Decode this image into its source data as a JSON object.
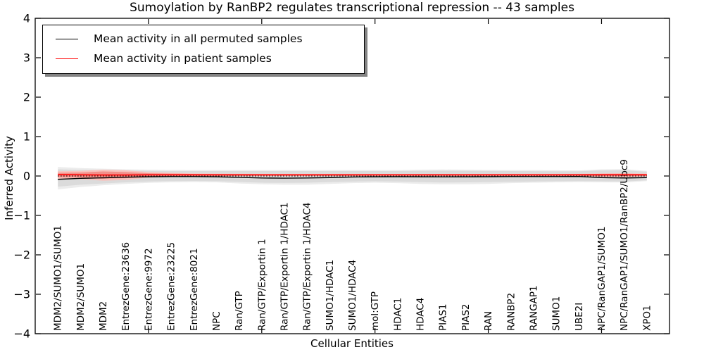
{
  "figure": {
    "title": "Sumoylation by RanBP2 regulates transcriptional repression -- 43 samples",
    "xlabel": "Cellular Entities",
    "ylabel": "Inferred Activity"
  },
  "legend": {
    "position": "upper left",
    "shadow": true,
    "entries": [
      {
        "label": "Mean activity in all permuted samples",
        "color": "#000000"
      },
      {
        "label": "Mean activity in patient samples",
        "color": "#ff0000"
      }
    ]
  },
  "chart_data": {
    "type": "line",
    "title": "Sumoylation by RanBP2 regulates transcriptional repression -- 43 samples",
    "xlabel": "Cellular Entities",
    "ylabel": "Inferred Activity",
    "ylim": [
      -4,
      4
    ],
    "xlim": [
      0,
      28
    ],
    "grid": false,
    "legend_position": "upper left",
    "yticks": [
      4,
      3,
      2,
      1,
      0,
      -1,
      -2,
      -3,
      -4
    ],
    "ytick_labels": [
      "4",
      "3",
      "2",
      "1",
      "0",
      "−1",
      "−2",
      "−3",
      "−4"
    ],
    "xticks": [
      5,
      10,
      15,
      20,
      25
    ],
    "categories": [
      "MDM2/SUMO1/SUMO1",
      "MDM2/SUMO1",
      "MDM2",
      "EntrezGene:23636",
      "EntrezGene:9972",
      "EntrezGene:23225",
      "EntrezGene:8021",
      "NPC",
      "Ran/GTP",
      "Ran/GTP/Exportin 1",
      "Ran/GTP/Exportin 1/HDAC1",
      "Ran/GTP/Exportin 1/HDAC4",
      "SUMO1/HDAC1",
      "SUMO1/HDAC4",
      "mol:GTP",
      "HDAC1",
      "HDAC4",
      "PIAS1",
      "PIAS2",
      "RAN",
      "RANBP2",
      "RANGAP1",
      "SUMO1",
      "UBE2I",
      "NPC/RanGAP1/SUMO1",
      "NPC/RanGAP1/SUMO1/RanBP2/Ubc9",
      "XPO1"
    ],
    "series": [
      {
        "name": "Mean activity in all permuted samples",
        "color": "#000000",
        "style": "solid",
        "width": 1.4,
        "values": [
          -0.085,
          -0.06,
          -0.045,
          -0.03,
          -0.02,
          -0.015,
          -0.015,
          -0.02,
          -0.035,
          -0.05,
          -0.055,
          -0.05,
          -0.04,
          -0.025,
          -0.02,
          -0.018,
          -0.02,
          -0.022,
          -0.02,
          -0.018,
          -0.015,
          -0.015,
          -0.015,
          -0.012,
          -0.04,
          -0.05,
          -0.04
        ]
      },
      {
        "name": "Mean activity in patient samples",
        "color": "#ff0000",
        "style": "solid",
        "width": 1.6,
        "values": [
          0.035,
          0.03,
          0.025,
          0.025,
          0.03,
          0.03,
          0.03,
          0.03,
          0.03,
          0.03,
          0.03,
          0.03,
          0.03,
          0.03,
          0.03,
          0.03,
          0.03,
          0.03,
          0.03,
          0.03,
          0.03,
          0.03,
          0.03,
          0.03,
          0.03,
          0.03,
          0.03
        ]
      }
    ],
    "zero_line": {
      "value": 0,
      "color": "#000000",
      "style": "dotted"
    },
    "bands": [
      {
        "name": "permuted-outer",
        "color": "#ececec",
        "upper": [
          0.23,
          0.2,
          0.185,
          0.17,
          0.16,
          0.155,
          0.15,
          0.15,
          0.15,
          0.15,
          0.15,
          0.15,
          0.15,
          0.15,
          0.15,
          0.15,
          0.16,
          0.165,
          0.16,
          0.155,
          0.15,
          0.15,
          0.145,
          0.14,
          0.17,
          0.175,
          0.13
        ],
        "lower": [
          -0.34,
          -0.28,
          -0.235,
          -0.2,
          -0.175,
          -0.16,
          -0.155,
          -0.16,
          -0.19,
          -0.21,
          -0.22,
          -0.22,
          -0.2,
          -0.18,
          -0.17,
          -0.18,
          -0.2,
          -0.21,
          -0.21,
          -0.2,
          -0.18,
          -0.17,
          -0.16,
          -0.155,
          -0.16,
          -0.165,
          -0.13
        ]
      },
      {
        "name": "permuted-inner",
        "color": "#dbdbdb",
        "upper": [
          0.17,
          0.155,
          0.15,
          0.14,
          0.13,
          0.125,
          0.125,
          0.125,
          0.125,
          0.125,
          0.125,
          0.125,
          0.125,
          0.125,
          0.125,
          0.125,
          0.13,
          0.135,
          0.13,
          0.127,
          0.125,
          0.122,
          0.12,
          0.12,
          0.14,
          0.145,
          0.11
        ],
        "lower": [
          -0.27,
          -0.22,
          -0.19,
          -0.16,
          -0.14,
          -0.13,
          -0.128,
          -0.132,
          -0.15,
          -0.17,
          -0.175,
          -0.17,
          -0.155,
          -0.14,
          -0.135,
          -0.14,
          -0.155,
          -0.165,
          -0.16,
          -0.155,
          -0.145,
          -0.14,
          -0.135,
          -0.13,
          -0.135,
          -0.14,
          -0.11
        ]
      },
      {
        "name": "patient-outer",
        "color": "#f8c3be",
        "upper": [
          0.12,
          0.13,
          0.16,
          0.145,
          0.1,
          0.08,
          0.065,
          0.06,
          0.058,
          0.056,
          0.055,
          0.055,
          0.055,
          0.055,
          0.054,
          0.054,
          0.054,
          0.054,
          0.054,
          0.054,
          0.055,
          0.055,
          0.055,
          0.056,
          0.065,
          0.07,
          0.06
        ],
        "lower": [
          -0.07,
          -0.08,
          -0.12,
          -0.1,
          -0.04,
          -0.02,
          -0.01,
          -0.006,
          -0.004,
          -0.003,
          -0.002,
          -0.002,
          -0.002,
          -0.002,
          -0.002,
          -0.002,
          -0.002,
          -0.002,
          -0.002,
          -0.002,
          -0.003,
          -0.004,
          -0.005,
          -0.006,
          -0.02,
          -0.025,
          -0.01
        ]
      },
      {
        "name": "patient-inner",
        "color": "#f2908a",
        "upper": [
          0.08,
          0.09,
          0.115,
          0.1,
          0.07,
          0.06,
          0.052,
          0.048,
          0.046,
          0.045,
          0.045,
          0.045,
          0.045,
          0.045,
          0.044,
          0.044,
          0.044,
          0.044,
          0.044,
          0.044,
          0.045,
          0.045,
          0.045,
          0.046,
          0.055,
          0.058,
          0.05
        ],
        "lower": [
          -0.03,
          -0.04,
          -0.07,
          -0.055,
          -0.015,
          -0.005,
          0.0,
          0.002,
          0.004,
          0.005,
          0.005,
          0.005,
          0.005,
          0.005,
          0.006,
          0.006,
          0.006,
          0.006,
          0.006,
          0.006,
          0.005,
          0.005,
          0.004,
          0.003,
          -0.005,
          -0.008,
          0.0
        ]
      }
    ]
  }
}
